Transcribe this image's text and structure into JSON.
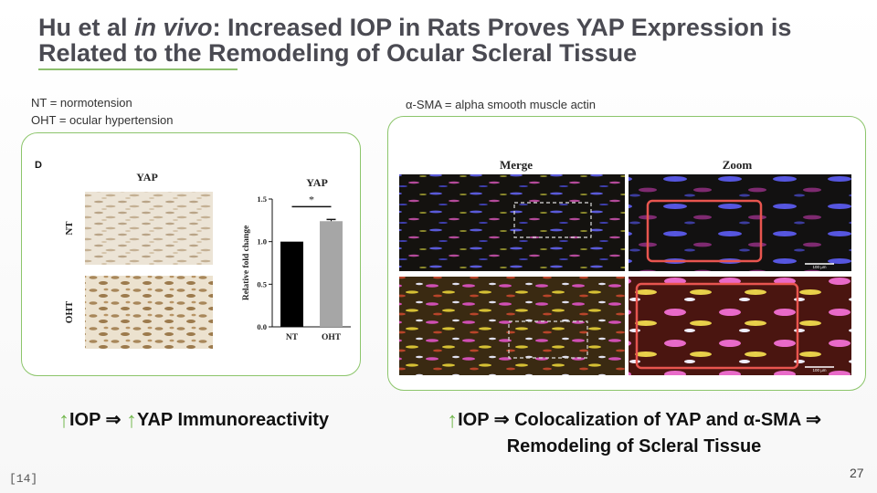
{
  "slide": {
    "title_part1": "Hu et al ",
    "title_italic": "in vivo",
    "title_part2": ": Increased IOP in Rats Proves YAP Expression is Related to the Remodeling of Ocular Scleral Tissue",
    "note_nt": "NT = normotension",
    "note_oht": "OHT = ocular hypertension",
    "note_asma": "α-SMA = alpha smooth muscle actin",
    "left_caption_a": "IOP ⇒ ",
    "left_caption_b": "YAP Immunoreactivity",
    "right_caption_a": "IOP ⇒ Colocalization of YAP and α-SMA ⇒",
    "right_caption_b": "Remodeling of Scleral Tissue",
    "page_number": "27",
    "reference": "[14]",
    "icons": {
      "up_arrow": "up-arrow-icon"
    },
    "colors": {
      "accent_green": "#8cc56b",
      "highlight_red": "#e8554f"
    }
  },
  "figure_left": {
    "panel_letter": "D",
    "micrograph_title": "YAP",
    "row_labels": [
      "NT",
      "OHT"
    ]
  },
  "figure_right": {
    "col_merge": "Merge",
    "col_zoom": "Zoom",
    "scale_bar_label": "100 µm"
  },
  "chart_data": {
    "type": "bar",
    "title": "YAP",
    "categories": [
      "NT",
      "OHT"
    ],
    "values": [
      1.0,
      1.24
    ],
    "errors": [
      0,
      0.02
    ],
    "ylabel": "Relative fold change",
    "xlabel": "",
    "ylim": [
      0,
      1.5
    ],
    "yticks": [
      "0.0",
      "0.5",
      "1.0",
      "1.5"
    ],
    "significance": "*",
    "colors": [
      "#000000",
      "#a6a6a6"
    ]
  }
}
